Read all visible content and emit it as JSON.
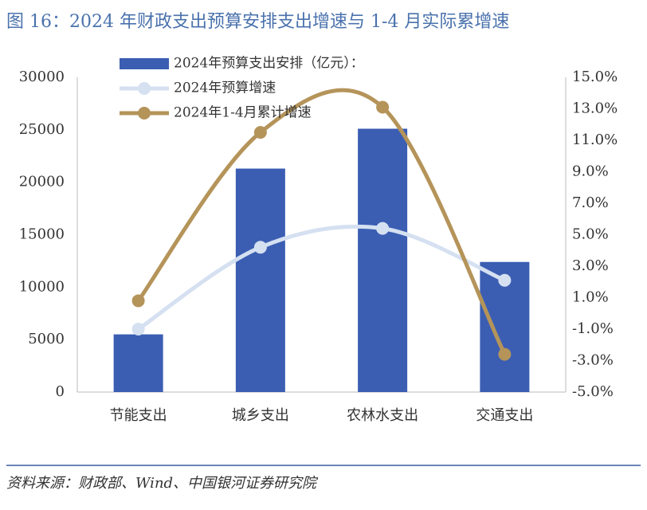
{
  "title": "图 16：2024 年财政支出预算安排支出增速与 1-4 月实际累增速",
  "source": "资料来源：财政部、Wind、中国银河证券研究院",
  "chart_data": {
    "type": "bar-line",
    "categories": [
      "节能支出",
      "城乡支出",
      "农林水支出",
      "交通支出"
    ],
    "series": [
      {
        "name": "2024年预算支出安排（亿元）：",
        "type": "bar",
        "color": "#3b5eb3",
        "values": [
          5500,
          21300,
          25100,
          12400
        ]
      },
      {
        "name": "2024年预算增速",
        "type": "line",
        "axis": "y2",
        "color": "#d5e0f1",
        "values": [
          -1.0,
          4.2,
          5.4,
          2.1
        ]
      },
      {
        "name": "2024年1-4月累计增速",
        "type": "line",
        "axis": "y2",
        "color": "#b5945a",
        "values": [
          0.8,
          11.5,
          13.1,
          -2.6
        ]
      }
    ],
    "ylim": [
      0,
      30000
    ],
    "yticks": [
      0,
      5000,
      10000,
      15000,
      20000,
      25000,
      30000
    ],
    "y2lim": [
      -5,
      15
    ],
    "y2ticks": [
      {
        "value": -5,
        "label": "-5.0%"
      },
      {
        "value": -3,
        "label": "-3.0%"
      },
      {
        "value": -1,
        "label": "-1.0%"
      },
      {
        "value": 1,
        "label": "1.0%"
      },
      {
        "value": 3,
        "label": "3.0%"
      },
      {
        "value": 5,
        "label": "5.0%"
      },
      {
        "value": 7,
        "label": "7.0%"
      },
      {
        "value": 9,
        "label": "9.0%"
      },
      {
        "value": 11,
        "label": "11.0%"
      },
      {
        "value": 13,
        "label": "13.0%"
      },
      {
        "value": 15,
        "label": "15.0%"
      }
    ]
  }
}
